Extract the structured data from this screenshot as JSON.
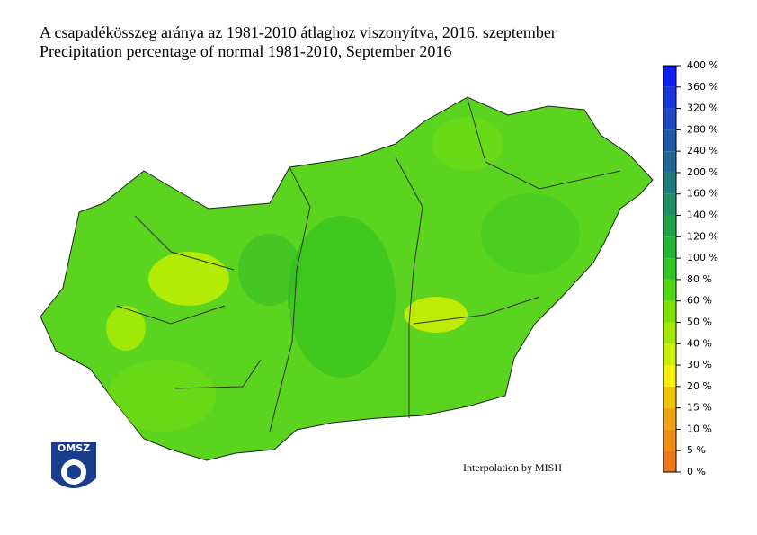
{
  "title": "A csapadékösszeg aránya az 1981-2010 átlaghoz viszonyítva, 2016. szeptember",
  "subtitle": "Precipitation percentage of normal 1981-2010, September 2016",
  "credit": "Interpolation by MISH",
  "logo": "OMSZ",
  "legend": {
    "labels": [
      "0 %",
      "5 %",
      "10 %",
      "15 %",
      "20 %",
      "30 %",
      "40 %",
      "50 %",
      "60 %",
      "80 %",
      "100 %",
      "120 %",
      "140 %",
      "160 %",
      "200 %",
      "240 %",
      "280 %",
      "320 %",
      "360 %",
      "400 %"
    ],
    "colors": [
      "#f07818",
      "#f08c10",
      "#f0a410",
      "#ecc400",
      "#f0f000",
      "#c8f000",
      "#a4e800",
      "#80e000",
      "#50d810",
      "#30c820",
      "#20b830",
      "#20a448",
      "#209064",
      "#207c7c",
      "#206894",
      "#2058ac",
      "#2048c4",
      "#1838dc",
      "#1020f4"
    ]
  }
}
